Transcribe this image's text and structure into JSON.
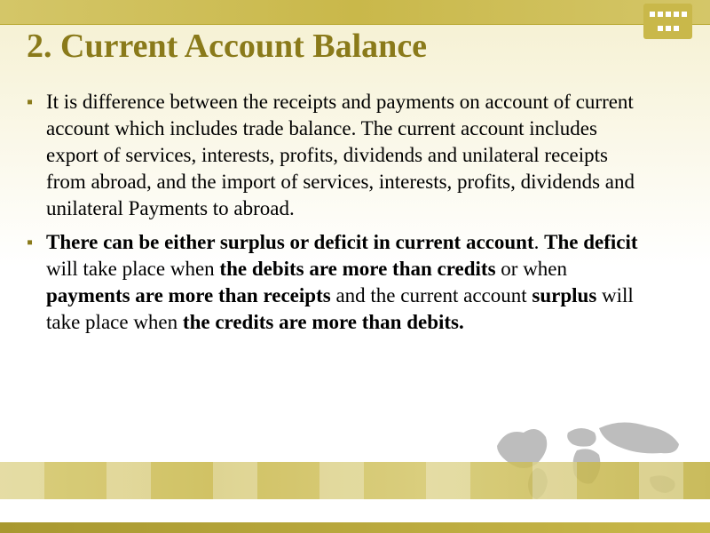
{
  "title": "2. Current Account Balance",
  "bullets": [
    {
      "text": "It is difference between the receipts and payments on account of current account which includes trade balance. The current account includes export of services, interests, profits, dividends and unilateral receipts from abroad, and the import of services, interests, profits, dividends and unilateral Payments to abroad."
    },
    {
      "html": "<b>There can be either surplus or deficit in current account</b>. <b>The deficit</b> will take place when <b>the debits are more than credits</b> or when <b>payments are more than receipts</b> and the current account <b>surplus</b> will take place when <b>the credits are more than debits.</b>"
    }
  ],
  "colors": {
    "title": "#8a7a1a",
    "band": "#c9b84a",
    "text": "#000000",
    "bullet": "#8a7a1a"
  },
  "typography": {
    "title_fontsize": 38,
    "body_fontsize": 23,
    "font_family": "Times New Roman"
  }
}
